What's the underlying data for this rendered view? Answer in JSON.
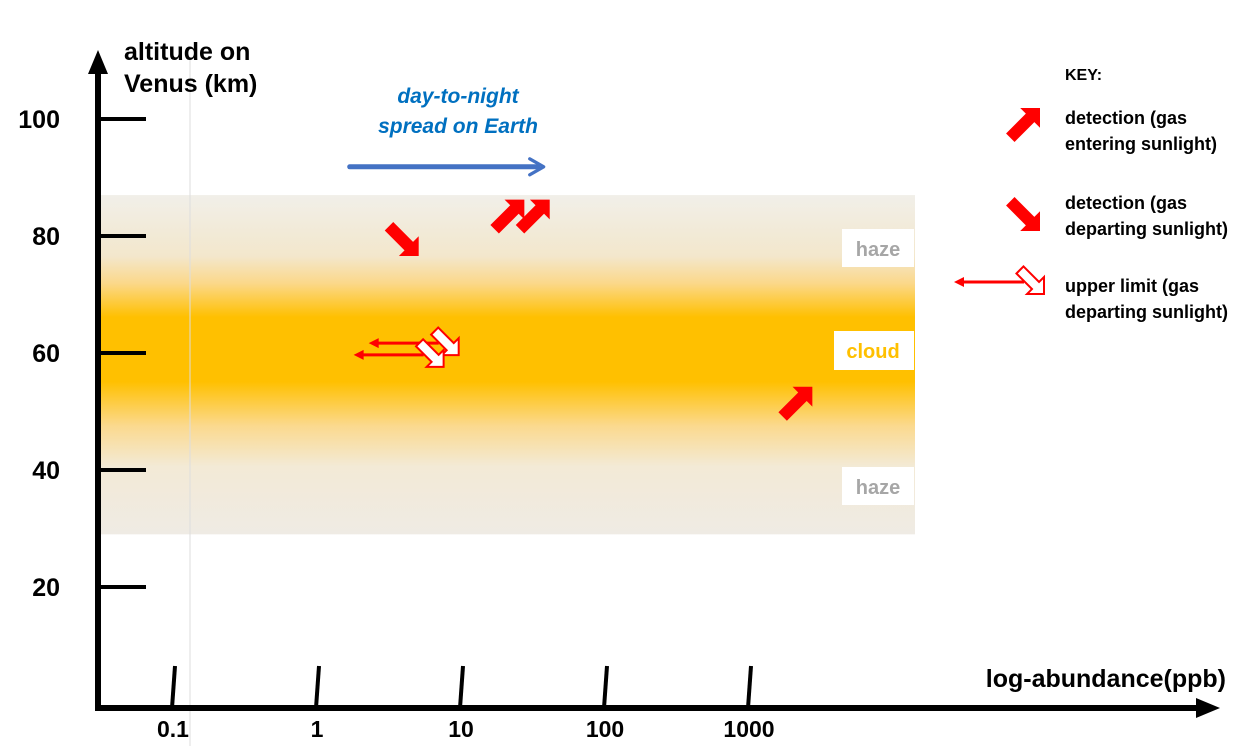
{
  "chart_data": {
    "type": "scatter",
    "y_axis": {
      "label_line1": "altitude on",
      "label_line2": "Venus (km)",
      "ticks": [
        20,
        40,
        60,
        80,
        100
      ],
      "tick_labels": [
        "20",
        "40",
        "60",
        "80",
        "100"
      ]
    },
    "x_axis": {
      "label": "log-abundance(ppb)",
      "scale": "log",
      "ticks": [
        0.1,
        1,
        10,
        100,
        1000
      ],
      "tick_labels": [
        "0.1",
        "1",
        "10",
        "100",
        "1000"
      ]
    },
    "bands": [
      {
        "name": "haze",
        "y_range": [
          29,
          87
        ]
      },
      {
        "name": "cloud",
        "y_range": [
          48,
          70
        ]
      }
    ],
    "band_labels": {
      "upper": "haze",
      "middle": "cloud",
      "lower": "haze"
    },
    "annotation": {
      "line1": "day-to-night",
      "line2": "spread on Earth",
      "x_start": 3,
      "x_end": 40,
      "y": 92
    },
    "points": [
      {
        "kind": "entering",
        "x": 20,
        "y": 84
      },
      {
        "kind": "entering",
        "x": 30,
        "y": 84
      },
      {
        "kind": "departing",
        "x": 4,
        "y": 80
      },
      {
        "kind": "entering",
        "x": 2000,
        "y": 52
      },
      {
        "kind": "upper_limit",
        "x": 7,
        "y": 61
      },
      {
        "kind": "upper_limit",
        "x": 5.5,
        "y": 59
      }
    ],
    "key": {
      "title": "KEY:",
      "items": [
        {
          "kind": "entering",
          "line1": "detection (gas",
          "line2": "entering sunlight)"
        },
        {
          "kind": "departing",
          "line1": "detection (gas",
          "line2": "departing sunlight)"
        },
        {
          "kind": "upper_limit",
          "line1": "upper limit (gas",
          "line2": "departing sunlight)"
        }
      ]
    },
    "colors": {
      "axis": "#000000",
      "detection": "#ff0000",
      "spread_arrow": "#4472c4",
      "annotation_text": "#0070c0",
      "cloud": "#ffc000",
      "haze": "#efebe4",
      "haze_label": "#a6a6a6",
      "cloud_label": "#ffc000"
    }
  }
}
